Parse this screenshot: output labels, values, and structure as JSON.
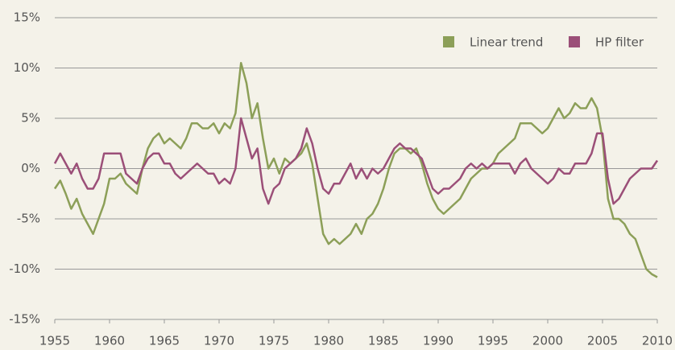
{
  "chart_data": {
    "type": "line",
    "xlim": [
      1955,
      2010
    ],
    "xticks": [
      1955,
      1960,
      1965,
      1970,
      1975,
      1980,
      1985,
      1990,
      1995,
      2000,
      2005,
      2010
    ],
    "ylim": [
      -15,
      15
    ],
    "yticks": [
      {
        "value": -15,
        "label": "-15%"
      },
      {
        "value": -10,
        "label": "-10%"
      },
      {
        "value": -5,
        "label": "-5%"
      },
      {
        "value": 0,
        "label": "0%"
      },
      {
        "value": 5,
        "label": "5%"
      },
      {
        "value": 10,
        "label": "10%"
      },
      {
        "value": 15,
        "label": "15%"
      }
    ],
    "grid": true,
    "legend": "top-right",
    "x": [
      1955,
      1955.5,
      1956,
      1956.5,
      1957,
      1957.5,
      1958,
      1958.5,
      1959,
      1959.5,
      1960,
      1960.5,
      1961,
      1961.5,
      1962,
      1962.5,
      1963,
      1963.5,
      1964,
      1964.5,
      1965,
      1965.5,
      1966,
      1966.5,
      1967,
      1967.5,
      1968,
      1968.5,
      1969,
      1969.5,
      1970,
      1970.5,
      1971,
      1971.5,
      1972,
      1972.5,
      1973,
      1973.5,
      1974,
      1974.5,
      1975,
      1975.5,
      1976,
      1976.5,
      1977,
      1977.5,
      1978,
      1978.5,
      1979,
      1979.5,
      1980,
      1980.5,
      1981,
      1981.5,
      1982,
      1982.5,
      1983,
      1983.5,
      1984,
      1984.5,
      1985,
      1985.5,
      1986,
      1986.5,
      1987,
      1987.5,
      1988,
      1988.5,
      1989,
      1989.5,
      1990,
      1990.5,
      1991,
      1991.5,
      1992,
      1992.5,
      1993,
      1993.5,
      1994,
      1994.5,
      1995,
      1995.5,
      1996,
      1996.5,
      1997,
      1997.5,
      1998,
      1998.5,
      1999,
      1999.5,
      2000,
      2000.5,
      2001,
      2001.5,
      2002,
      2002.5,
      2003,
      2003.5,
      2004,
      2004.5,
      2005,
      2005.5,
      2006,
      2006.5,
      2007,
      2007.5,
      2008,
      2008.5,
      2009,
      2009.5,
      2010
    ],
    "series": [
      {
        "name": "Linear trend",
        "color": "#8c9f58",
        "values": [
          -2,
          -1.2,
          -2.5,
          -4,
          -3,
          -4.5,
          -5.5,
          -6.5,
          -5,
          -3.5,
          -1,
          -1,
          -0.5,
          -1.5,
          -2,
          -2.5,
          0,
          2,
          3,
          3.5,
          2.5,
          3,
          2.5,
          2,
          3,
          4.5,
          4.5,
          4,
          4,
          4.5,
          3.5,
          4.5,
          4,
          5.5,
          10.5,
          8.5,
          5,
          6.5,
          3,
          0,
          1,
          -0.5,
          1,
          0.5,
          1,
          1.5,
          2.5,
          0.5,
          -3,
          -6.5,
          -7.5,
          -7,
          -7.5,
          -7,
          -6.5,
          -5.5,
          -6.5,
          -5,
          -4.5,
          -3.5,
          -2,
          0,
          1.5,
          2,
          2,
          1.5,
          2,
          0.5,
          -1.5,
          -3,
          -4,
          -4.5,
          -4,
          -3.5,
          -3,
          -2,
          -1,
          -0.5,
          0,
          0,
          0.5,
          1.5,
          2,
          2.5,
          3,
          4.5,
          4.5,
          4.5,
          4,
          3.5,
          4,
          5,
          6,
          5,
          5.5,
          6.5,
          6,
          6,
          7,
          6,
          3,
          -3,
          -5,
          -5,
          -5.5,
          -6.5,
          -7,
          -8.5,
          -10,
          -10.5,
          -10.8
        ]
      },
      {
        "name": "HP filter",
        "color": "#9b4f78",
        "values": [
          0.5,
          1.5,
          0.5,
          -0.5,
          0.5,
          -1,
          -2,
          -2,
          -1,
          1.5,
          1.5,
          1.5,
          1.5,
          -0.5,
          -1,
          -1.5,
          0,
          1,
          1.5,
          1.5,
          0.5,
          0.5,
          -0.5,
          -1,
          -0.5,
          0,
          0.5,
          0,
          -0.5,
          -0.5,
          -1.5,
          -1,
          -1.5,
          0,
          5,
          3,
          1,
          2,
          -2,
          -3.5,
          -2,
          -1.5,
          0,
          0.5,
          1,
          2,
          4,
          2.5,
          0,
          -2,
          -2.5,
          -1.5,
          -1.5,
          -0.5,
          0.5,
          -1,
          0,
          -1,
          0,
          -0.5,
          0,
          1,
          2,
          2.5,
          2,
          2,
          1.5,
          1,
          -0.5,
          -2,
          -2.5,
          -2,
          -2,
          -1.5,
          -1,
          0,
          0.5,
          0,
          0.5,
          0,
          0.5,
          0.5,
          0.5,
          0.5,
          -0.5,
          0.5,
          1,
          0,
          -0.5,
          -1,
          -1.5,
          -1,
          0,
          -0.5,
          -0.5,
          0.5,
          0.5,
          0.5,
          1.5,
          3.5,
          3.5,
          -1,
          -3.5,
          -3,
          -2,
          -1,
          -0.5,
          0,
          0,
          0,
          0.8
        ]
      }
    ]
  }
}
